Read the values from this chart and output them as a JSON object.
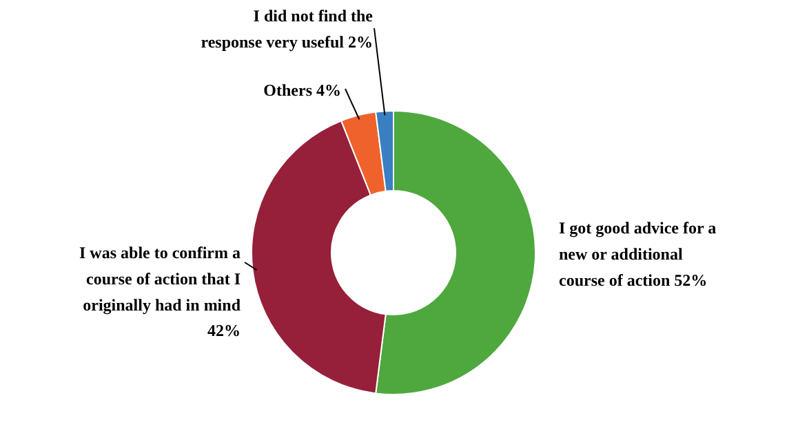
{
  "chart_data": {
    "type": "donut",
    "categories": [
      "I got good advice for a new or additional course of action",
      "I was able to confirm a course of action that I originally had in mind",
      "Others",
      "I did not find the response very useful"
    ],
    "values": [
      52,
      42,
      4,
      2
    ],
    "value_labels": [
      "52%",
      "42%",
      "4%",
      "2%"
    ],
    "colors": [
      "#4ea83e",
      "#96203a",
      "#f0622c",
      "#3a7fc1"
    ],
    "legend": false
  }
}
